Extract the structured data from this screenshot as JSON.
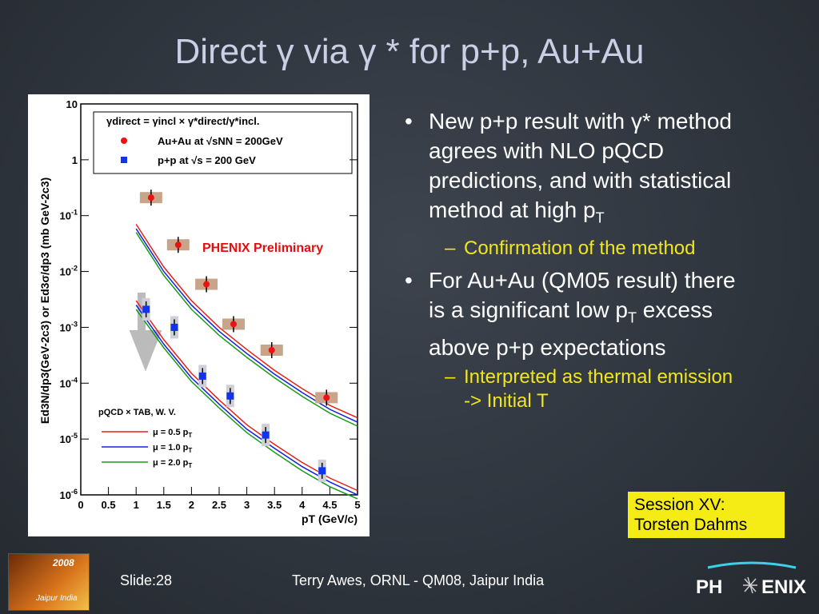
{
  "title": "Direct γ via γ * for p+p, Au+Au",
  "bullets": [
    {
      "text": "New p+p result with γ* method agrees with NLO pQCD predictions, and with statistical method at high p",
      "sub": "T",
      "text_after": "",
      "subbullet": "Confirmation of the method"
    },
    {
      "text": "For Au+Au (QM05 result) there is a significant low p",
      "sub": "T",
      "text_after": " excess above p+p expectations",
      "subbullet": "Interpreted as thermal emission -> Initial T"
    }
  ],
  "session_box": [
    "Session XV:",
    "Torsten Dahms"
  ],
  "footer": {
    "slide": "Slide:28",
    "credit": "Terry Awes, ORNL - QM08, Jaipur India",
    "logo_left": "PH",
    "logo_right": "ENIX"
  },
  "conference_logo": {
    "year": "2008",
    "place": "Jaipur India"
  },
  "chart_data": {
    "type": "scatter",
    "log_y": true,
    "y_label": "Ed3N/dp3(GeV-2c3) or Ed3σ/dp3 (mb GeV-2c3)",
    "x_label": "pT (GeV/c)",
    "legend_header": "γdirect = γincl × γ*direct/γ*incl.",
    "annotation": "PHENIX Preliminary",
    "curve_legend_title": "pQCD × TAB, W. V.",
    "xlim": [
      0,
      5
    ],
    "xticks": [
      0,
      0.5,
      1,
      1.5,
      2,
      2.5,
      3,
      3.5,
      4,
      4.5,
      5
    ],
    "ylim": [
      1e-06,
      10
    ],
    "yticks": [
      {
        "value": 1e-06,
        "label": "10",
        "exponent": "-6"
      },
      {
        "value": 1e-05,
        "label": "10",
        "exponent": "-5"
      },
      {
        "value": 0.0001,
        "label": "10",
        "exponent": "-4"
      },
      {
        "value": 0.001,
        "label": "10",
        "exponent": "-3"
      },
      {
        "value": 0.01,
        "label": "10",
        "exponent": "-2"
      },
      {
        "value": 0.1,
        "label": "10",
        "exponent": "-1"
      },
      1,
      10
    ],
    "points": [
      {
        "name": "Au+Au at √sNN = 200GeV",
        "color": "#ee1111",
        "marker": "circle",
        "x": [
          1.27,
          1.76,
          2.27,
          2.76,
          3.45,
          4.44
        ],
        "values": [
          0.21,
          0.03,
          0.0059,
          0.00114,
          0.00039,
          5.5e-05
        ]
      },
      {
        "name": "p+p at √s = 200 GeV",
        "color": "#1133ee",
        "marker": "square",
        "x": [
          1.18,
          1.69,
          2.2,
          2.7,
          3.34,
          4.36
        ],
        "values": [
          0.0021,
          0.001,
          0.000134,
          5.9e-05,
          1.18e-05,
          2.7e-06
        ]
      }
    ],
    "curve_x": [
      1,
      1.5,
      2,
      2.5,
      3,
      3.5,
      4,
      4.5,
      5
    ],
    "series": [
      {
        "name": "μ = 0.5 p",
        "name_sub": "T",
        "color": "#e8201a",
        "values": [
          0.07,
          0.012,
          0.003,
          0.001,
          0.0004,
          0.00017,
          8e-05,
          4e-05,
          2.4e-05
        ],
        "values_pp": [
          0.003,
          0.0006,
          0.00015,
          5e-05,
          1.8e-05,
          8e-06,
          3.8e-06,
          2e-06,
          1.2e-06
        ]
      },
      {
        "name": "μ = 1.0 p",
        "name_sub": "T",
        "color": "#1020e0",
        "values": [
          0.058,
          0.01,
          0.0025,
          0.00085,
          0.00034,
          0.000145,
          6.8e-05,
          3.4e-05,
          2e-05
        ],
        "values_pp": [
          0.0025,
          0.0005,
          0.000125,
          4.2e-05,
          1.5e-05,
          6.8e-06,
          3.2e-06,
          1.7e-06,
          1e-06
        ]
      },
      {
        "name": "μ = 2.0 p",
        "name_sub": "T",
        "color": "#1a9a1a",
        "values": [
          0.05,
          0.0085,
          0.0021,
          0.00072,
          0.00029,
          0.000125,
          5.8e-05,
          2.9e-05,
          1.7e-05
        ],
        "values_pp": [
          0.0021,
          0.00043,
          0.000107,
          3.6e-05,
          1.3e-05,
          5.8e-06,
          2.7e-06,
          1.4e-06,
          8.5e-07
        ]
      }
    ]
  }
}
